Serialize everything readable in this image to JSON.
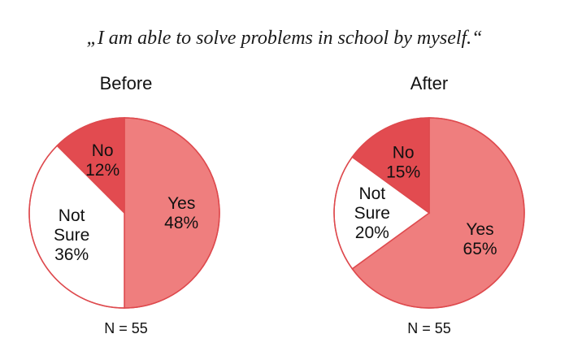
{
  "title": "„I am able to solve problems in school by myself.“",
  "colors": {
    "Yes": "#ef7e7e",
    "Not Sure": "#ffffff",
    "No": "#e24b50",
    "stroke": "#de4a4e"
  },
  "chart_data": [
    {
      "type": "pie",
      "title": "Before",
      "note": "N = 55",
      "slices": [
        {
          "label": "Yes",
          "value": 48,
          "display": "48%"
        },
        {
          "label": "Not Sure",
          "value": 36,
          "display": "36%"
        },
        {
          "label": "No",
          "value": 12,
          "display": "12%"
        }
      ]
    },
    {
      "type": "pie",
      "title": "After",
      "note": "N = 55",
      "slices": [
        {
          "label": "Yes",
          "value": 65,
          "display": "65%"
        },
        {
          "label": "Not Sure",
          "value": 20,
          "display": "20%"
        },
        {
          "label": "No",
          "value": 15,
          "display": "15%"
        }
      ]
    }
  ]
}
